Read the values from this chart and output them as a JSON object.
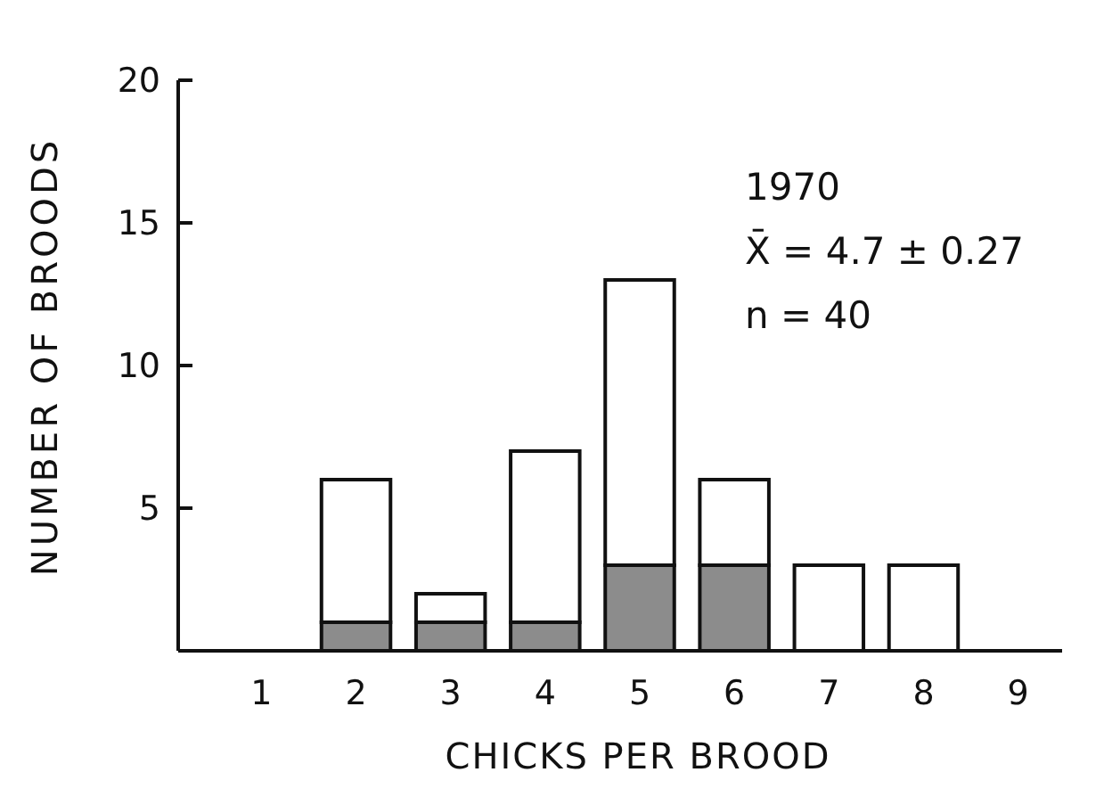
{
  "chart_data": {
    "type": "bar",
    "stacked": true,
    "xlabel": "CHICKS PER BROOD",
    "ylabel": "NUMBER OF BROODS",
    "categories": [
      "1",
      "2",
      "3",
      "4",
      "5",
      "6",
      "7",
      "8",
      "9"
    ],
    "series": [
      {
        "color": "#8c8c8c",
        "values": [
          0,
          1,
          1,
          1,
          3,
          3,
          0,
          0,
          0
        ]
      },
      {
        "color": "#ffffff",
        "values": [
          0,
          5,
          1,
          6,
          10,
          3,
          3,
          3,
          0
        ]
      }
    ],
    "ylim": [
      0,
      20
    ],
    "yticks": [
      5,
      10,
      15,
      20
    ],
    "annotations": [
      "1970",
      "X̄ = 4.7 ± 0.27",
      "n = 40"
    ]
  }
}
